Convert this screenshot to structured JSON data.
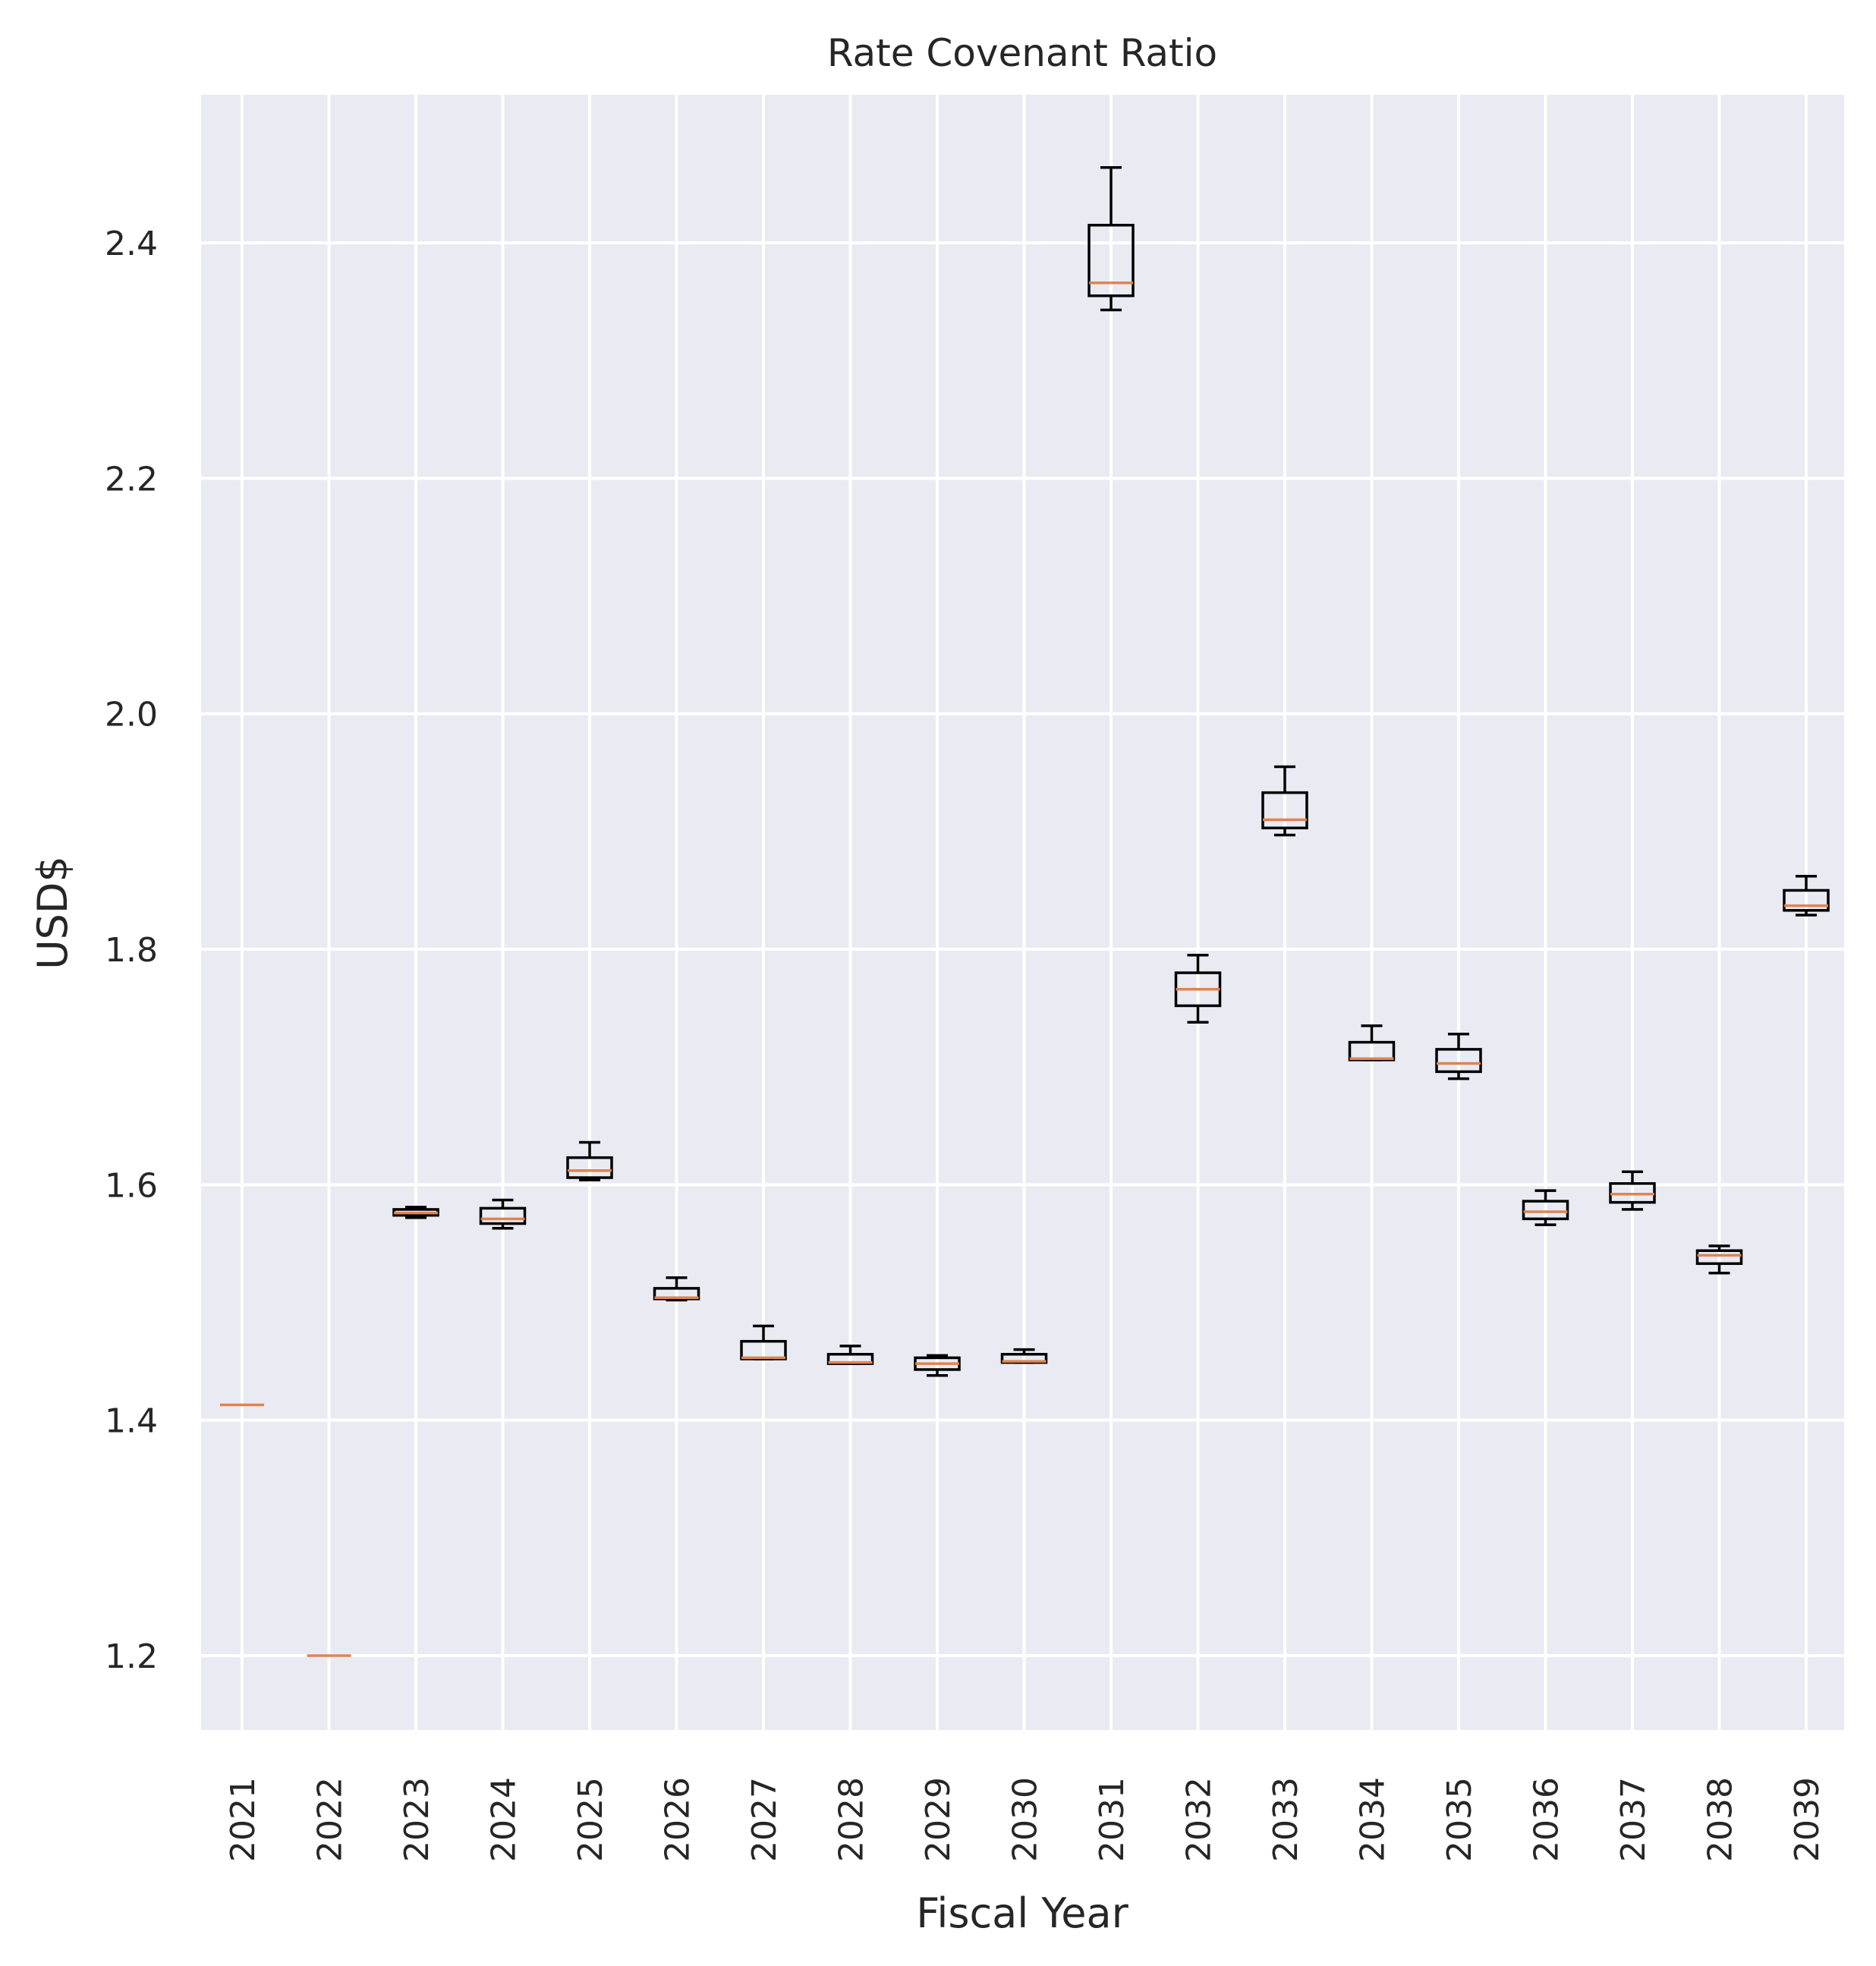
{
  "chart_data": {
    "type": "box",
    "title": "Rate Covenant Ratio",
    "xlabel": "Fiscal Year",
    "ylabel": "USD$",
    "ylim": [
      1.14,
      2.53
    ],
    "yticks": [
      "1.2",
      "1.4",
      "1.6",
      "1.8",
      "2.0",
      "2.2",
      "2.4"
    ],
    "ytick_values": [
      1.2,
      1.4,
      1.6,
      1.8,
      2.0,
      2.2,
      2.4
    ],
    "grid": true,
    "colors": {
      "background": "#eaeaf2",
      "grid": "#ffffff",
      "box": "#000000",
      "median": "#dd8452"
    },
    "categories": [
      "2021",
      "2022",
      "2023",
      "2024",
      "2025",
      "2026",
      "2027",
      "2028",
      "2029",
      "2030",
      "2031",
      "2032",
      "2033",
      "2034",
      "2035",
      "2036",
      "2037",
      "2038",
      "2039"
    ],
    "boxes": [
      {
        "whislo": 1.413,
        "q1": 1.413,
        "med": 1.413,
        "q3": 1.413,
        "whishi": 1.413
      },
      {
        "whislo": 1.2,
        "q1": 1.2,
        "med": 1.2,
        "q3": 1.2,
        "whishi": 1.2
      },
      {
        "whislo": 1.572,
        "q1": 1.574,
        "med": 1.576,
        "q3": 1.579,
        "whishi": 1.581
      },
      {
        "whislo": 1.563,
        "q1": 1.567,
        "med": 1.571,
        "q3": 1.58,
        "whishi": 1.587
      },
      {
        "whislo": 1.604,
        "q1": 1.606,
        "med": 1.612,
        "q3": 1.623,
        "whishi": 1.636
      },
      {
        "whislo": 1.502,
        "q1": 1.503,
        "med": 1.504,
        "q3": 1.512,
        "whishi": 1.521
      },
      {
        "whislo": 1.452,
        "q1": 1.452,
        "med": 1.453,
        "q3": 1.467,
        "whishi": 1.48
      },
      {
        "whislo": 1.448,
        "q1": 1.448,
        "med": 1.449,
        "q3": 1.456,
        "whishi": 1.463
      },
      {
        "whislo": 1.438,
        "q1": 1.443,
        "med": 1.448,
        "q3": 1.453,
        "whishi": 1.455
      },
      {
        "whislo": 1.449,
        "q1": 1.449,
        "med": 1.45,
        "q3": 1.456,
        "whishi": 1.46
      },
      {
        "whislo": 2.343,
        "q1": 2.355,
        "med": 2.366,
        "q3": 2.415,
        "whishi": 2.464
      },
      {
        "whislo": 1.738,
        "q1": 1.752,
        "med": 1.766,
        "q3": 1.78,
        "whishi": 1.795
      },
      {
        "whislo": 1.897,
        "q1": 1.903,
        "med": 1.91,
        "q3": 1.933,
        "whishi": 1.955
      },
      {
        "whislo": 1.706,
        "q1": 1.706,
        "med": 1.707,
        "q3": 1.721,
        "whishi": 1.735
      },
      {
        "whislo": 1.69,
        "q1": 1.696,
        "med": 1.703,
        "q3": 1.715,
        "whishi": 1.728
      },
      {
        "whislo": 1.566,
        "q1": 1.571,
        "med": 1.577,
        "q3": 1.586,
        "whishi": 1.595
      },
      {
        "whislo": 1.579,
        "q1": 1.585,
        "med": 1.592,
        "q3": 1.601,
        "whishi": 1.611
      },
      {
        "whislo": 1.525,
        "q1": 1.533,
        "med": 1.54,
        "q3": 1.544,
        "whishi": 1.548
      },
      {
        "whislo": 1.829,
        "q1": 1.833,
        "med": 1.837,
        "q3": 1.85,
        "whishi": 1.862
      }
    ]
  }
}
